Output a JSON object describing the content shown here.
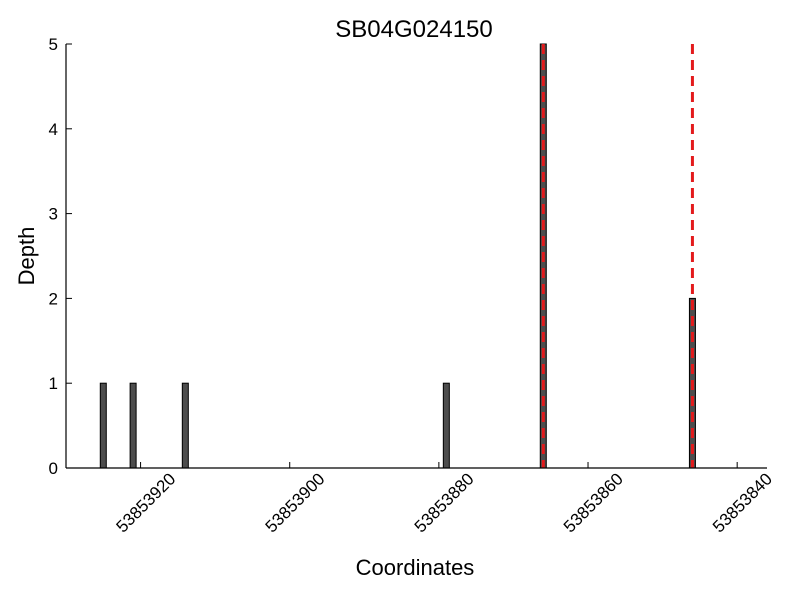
{
  "chart_data": {
    "type": "bar",
    "title": "SB04G024150",
    "xlabel": "Coordinates",
    "ylabel": "Depth",
    "x_inverted": true,
    "xlim": [
      53853930,
      53853836
    ],
    "ylim": [
      0,
      5
    ],
    "xticks": [
      53853920,
      53853900,
      53853880,
      53853860,
      53853840
    ],
    "xtick_labels": [
      "53853920",
      "53853900",
      "53853880",
      "53853860",
      "53853840"
    ],
    "yticks": [
      0,
      1,
      2,
      3,
      4,
      5
    ],
    "ytick_labels": [
      "0",
      "1",
      "2",
      "3",
      "4",
      "5"
    ],
    "grid": false,
    "bars": [
      {
        "x": 53853925,
        "value": 1
      },
      {
        "x": 53853921,
        "value": 1
      },
      {
        "x": 53853914,
        "value": 1
      },
      {
        "x": 53853879,
        "value": 1
      },
      {
        "x": 53853866,
        "value": 5
      },
      {
        "x": 53853846,
        "value": 2
      }
    ],
    "bar_color": "#4d4d4d",
    "markers": [
      {
        "x": 53853866,
        "style": "dashed",
        "color": "#e31a1c"
      },
      {
        "x": 53853846,
        "style": "dashed",
        "color": "#e31a1c"
      }
    ]
  }
}
